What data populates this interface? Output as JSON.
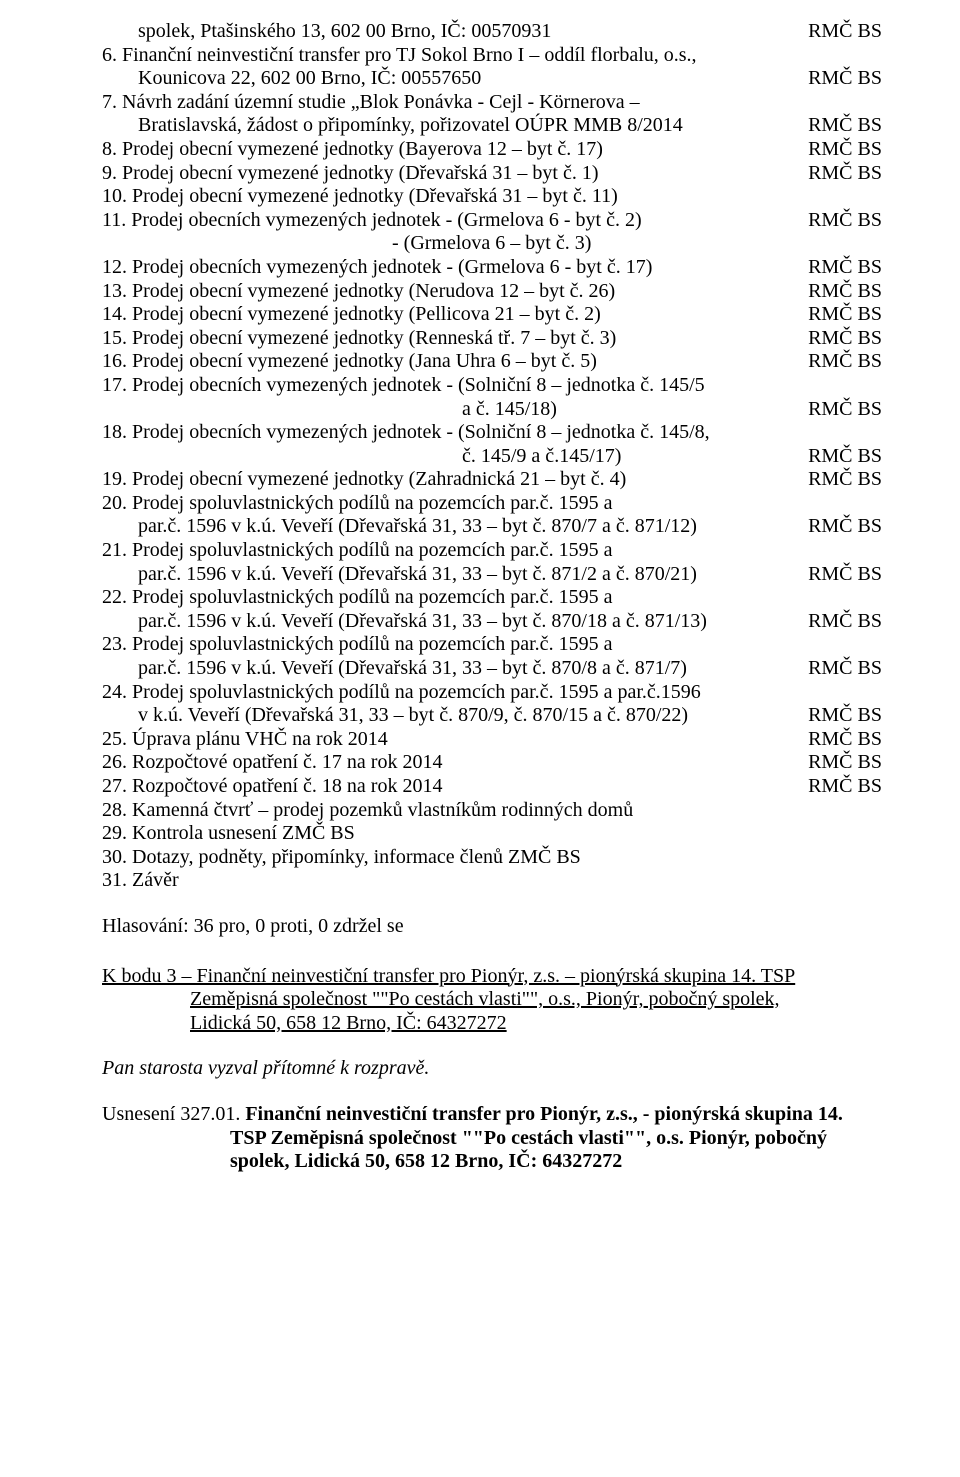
{
  "tag": "RMČ BS",
  "items": [
    {
      "n": "",
      "lines": [
        {
          "t": "spolek, Ptašinského 13, 602 00 Brno, IČ: 00570931",
          "indent": "indent-kounicova",
          "tag": true
        }
      ]
    },
    {
      "n": "6.",
      "lines": [
        {
          "t": "Finanční neinvestiční transfer pro TJ Sokol Brno I – oddíl florbalu, o.s.,"
        },
        {
          "t": "Kounicova 22, 602 00 Brno, IČ: 00557650",
          "indent": "indent-kounicova",
          "tag": true
        }
      ]
    },
    {
      "n": "7.",
      "lines": [
        {
          "t": "Návrh zadání územní studie „Blok Ponávka - Cejl - Körnerova –"
        },
        {
          "t": "Bratislavská, žádost o  připomínky, pořizovatel OÚPR MMB 8/2014",
          "indent": "indent-bratislavska",
          "tag": true
        }
      ]
    },
    {
      "n": "8.",
      "lines": [
        {
          "t": "Prodej obecní vymezené jednotky (Bayerova 12 – byt č. 17)",
          "tag": true
        }
      ]
    },
    {
      "n": "9.",
      "lines": [
        {
          "t": "Prodej obecní vymezené jednotky (Dřevařská 31 – byt č. 1)",
          "tag": true
        }
      ]
    },
    {
      "n": "10.",
      "lines": [
        {
          "t": "Prodej obecní vymezené jednotky (Dřevařská 31 – byt č. 11)"
        }
      ]
    },
    {
      "n": "11.",
      "lines": [
        {
          "t": "Prodej obecních vymezených jednotek  - (Grmelova 6 - byt č. 2)",
          "tag": true
        },
        {
          "t": "- (Grmelova 6 – byt č. 3)",
          "indent": "indent-grmelova"
        }
      ]
    },
    {
      "n": "12.",
      "lines": [
        {
          "t": "Prodej obecních vymezených jednotek  - (Grmelova 6 - byt č. 17)",
          "tag": true
        }
      ]
    },
    {
      "n": "13.",
      "lines": [
        {
          "t": "Prodej obecní vymezené jednotky (Nerudova 12 – byt č. 26)",
          "tag": true
        }
      ]
    },
    {
      "n": "14.",
      "lines": [
        {
          "t": "Prodej obecní vymezené jednotky (Pellicova 21 – byt č. 2)",
          "tag": true
        }
      ]
    },
    {
      "n": "15.",
      "lines": [
        {
          "t": "Prodej obecní vymezené jednotky (Renneská tř. 7 – byt č. 3)",
          "tag": true
        }
      ]
    },
    {
      "n": "16.",
      "lines": [
        {
          "t": "Prodej obecní vymezené jednotky (Jana Uhra 6 – byt č. 5)",
          "tag": true
        }
      ]
    },
    {
      "n": "17.",
      "lines": [
        {
          "t": "Prodej obecních vymezených jednotek - (Solniční 8 – jednotka č. 145/5"
        },
        {
          "t": "a č. 145/18)",
          "indent": "indent-ac145",
          "tag": true
        }
      ]
    },
    {
      "n": "18.",
      "lines": [
        {
          "t": "Prodej obecních vymezených jednotek - (Solniční 8 – jednotka č. 145/8,"
        },
        {
          "t": "č. 145/9 a č.145/17)",
          "indent": "indent-c145",
          "tag": true
        }
      ]
    },
    {
      "n": "19.",
      "lines": [
        {
          "t": "Prodej obecní vymezené jednotky  (Zahradnická 21 – byt č. 4)",
          "tag": true
        }
      ]
    },
    {
      "n": "20.",
      "lines": [
        {
          "t": "Prodej spoluvlastnických podílů na pozemcích par.č. 1595 a"
        },
        {
          "t": "par.č. 1596 v k.ú. Veveří (Dřevařská 31, 33 – byt č. 870/7 a č. 871/12)",
          "indent": "indent-parc",
          "tag": true
        }
      ]
    },
    {
      "n": "21.",
      "lines": [
        {
          "t": "Prodej spoluvlastnických podílů na pozemcích par.č. 1595 a"
        },
        {
          "t": "par.č. 1596 v k.ú. Veveří (Dřevařská 31, 33 – byt č. 871/2 a č. 870/21)",
          "indent": "indent-parc",
          "tag": true
        }
      ]
    },
    {
      "n": "22.",
      "lines": [
        {
          "t": "Prodej spoluvlastnických podílů na pozemcích par.č. 1595 a"
        },
        {
          "t": "par.č. 1596 v k.ú. Veveří (Dřevařská 31, 33 – byt č. 870/18 a č. 871/13)",
          "indent": "indent-parc",
          "tag": true
        }
      ]
    },
    {
      "n": "23.",
      "lines": [
        {
          "t": "Prodej spoluvlastnických podílů na pozemcích par.č. 1595 a"
        },
        {
          "t": "par.č. 1596 v k.ú. Veveří (Dřevařská 31, 33 – byt č. 870/8 a č. 871/7)",
          "indent": "indent-parc",
          "tag": true
        }
      ]
    },
    {
      "n": "24.",
      "lines": [
        {
          "t": "Prodej spoluvlastnických podílů na pozemcích par.č. 1595 a par.č.1596"
        },
        {
          "t": "v k.ú. Veveří (Dřevařská 31, 33 – byt č. 870/9, č. 870/15 a č. 870/22)",
          "indent": "indent-vku",
          "tag": true
        }
      ]
    },
    {
      "n": "25.",
      "lines": [
        {
          "t": "Úprava plánu VHČ na rok 2014",
          "tag": true
        }
      ]
    },
    {
      "n": "26.",
      "lines": [
        {
          "t": "Rozpočtové opatření č. 17 na rok 2014",
          "tag": true
        }
      ]
    },
    {
      "n": "27.",
      "lines": [
        {
          "t": "Rozpočtové opatření č. 18 na rok 2014",
          "tag": true
        }
      ]
    },
    {
      "n": "28.",
      "lines": [
        {
          "t": "Kamenná čtvrť – prodej pozemků vlastníkům rodinných domů"
        }
      ]
    },
    {
      "n": "29.",
      "lines": [
        {
          "t": "Kontrola usnesení ZMČ BS"
        }
      ]
    },
    {
      "n": "30.",
      "lines": [
        {
          "t": "Dotazy, podněty, připomínky, informace členů ZMČ BS"
        }
      ]
    },
    {
      "n": "31.",
      "lines": [
        {
          "t": "Závěr"
        }
      ]
    }
  ],
  "vote": "Hlasování: 36 pro, 0 proti, 0 zdržel se",
  "kbodu": {
    "line1": "K bodu 3 – Finanční neinvestiční transfer pro Pionýr, z.s. – pionýrská skupina 14. TSP",
    "line2": "Zeměpisná společnost \"\"Po cestách vlasti\"\", o.s., Pionýr, pobočný spolek,",
    "line3": "Lidická 50, 658 12 Brno, IČ: 64327272"
  },
  "pan": "Pan starosta vyzval přítomné k rozpravě.",
  "usneseni": {
    "prefix": "Usnesení 327.01.",
    "line1rest": " Finanční neinvestiční transfer pro Pionýr, z.s., - pionýrská skupina 14.",
    "line2": "TSP Zeměpisná společnost \"\"Po cestách vlasti\"\", o.s. Pionýr, pobočný",
    "line3": "spolek, Lidická 50, 658 12 Brno, IČ: 64327272"
  }
}
